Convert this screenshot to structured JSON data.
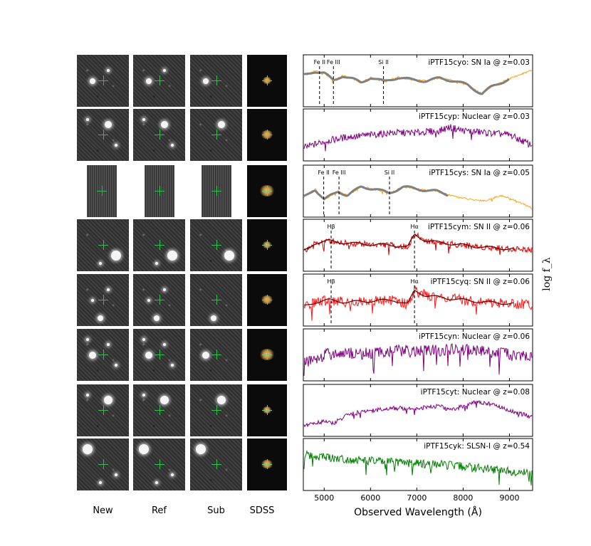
{
  "column_labels": [
    "New",
    "Ref",
    "Sub",
    "SDSS"
  ],
  "chart_data": {
    "type": "line",
    "xlabel": "Observed Wavelength (Å)",
    "ylabel": "log f_λ",
    "xlim": [
      4550,
      9500
    ],
    "xticks": [
      5000,
      6000,
      7000,
      8000,
      9000
    ],
    "panels": [
      {
        "label": "iPTF15cyo: SN Ia @ z=0.03",
        "color": "#f5a623",
        "template_color": "#808080",
        "lines": [
          {
            "name": "Fe II",
            "x": 4900
          },
          {
            "name": "Fe III",
            "x": 5200
          },
          {
            "name": "Si II",
            "x": 6280
          }
        ],
        "points": [
          [
            4550,
            0.62
          ],
          [
            4800,
            0.72
          ],
          [
            5000,
            0.68
          ],
          [
            5200,
            0.5
          ],
          [
            5400,
            0.62
          ],
          [
            5600,
            0.55
          ],
          [
            5800,
            0.45
          ],
          [
            6000,
            0.58
          ],
          [
            6300,
            0.48
          ],
          [
            6600,
            0.58
          ],
          [
            6900,
            0.52
          ],
          [
            7200,
            0.5
          ],
          [
            7500,
            0.56
          ],
          [
            7800,
            0.5
          ],
          [
            8100,
            0.4
          ],
          [
            8400,
            0.2
          ],
          [
            8600,
            0.35
          ],
          [
            9000,
            0.55
          ],
          [
            9500,
            0.75
          ]
        ]
      },
      {
        "label": "iPTF15cyp: Nuclear @ z=0.03",
        "color": "#800080",
        "lines": [],
        "points": [
          [
            4550,
            0.2
          ],
          [
            5000,
            0.35
          ],
          [
            5500,
            0.45
          ],
          [
            6000,
            0.5
          ],
          [
            6500,
            0.55
          ],
          [
            7000,
            0.55
          ],
          [
            7500,
            0.6
          ],
          [
            7700,
            0.68
          ],
          [
            8000,
            0.6
          ],
          [
            8500,
            0.55
          ],
          [
            9000,
            0.5
          ],
          [
            9500,
            0.25
          ]
        ]
      },
      {
        "label": "iPTF15cys: SN Ia @ z=0.05",
        "color": "#f5a623",
        "template_color": "#808080",
        "lines": [
          {
            "name": "Fe II",
            "x": 4990
          },
          {
            "name": "Fe III",
            "x": 5320
          },
          {
            "name": "Si II",
            "x": 6410
          }
        ],
        "points": [
          [
            4550,
            0.35
          ],
          [
            4800,
            0.55
          ],
          [
            5000,
            0.3
          ],
          [
            5300,
            0.5
          ],
          [
            5500,
            0.4
          ],
          [
            5800,
            0.6
          ],
          [
            6100,
            0.55
          ],
          [
            6400,
            0.45
          ],
          [
            6700,
            0.6
          ],
          [
            7000,
            0.55
          ],
          [
            7400,
            0.5
          ],
          [
            7800,
            0.38
          ],
          [
            8200,
            0.3
          ],
          [
            8500,
            0.28
          ],
          [
            8800,
            0.4
          ],
          [
            9100,
            0.3
          ],
          [
            9500,
            0.1
          ]
        ]
      },
      {
        "label": "iPTF15cym: SN II @ z=0.06",
        "color": "#e00000",
        "template_color": "#5a0000",
        "lines": [
          {
            "name": "Hβ",
            "x": 5150
          },
          {
            "name": "Hα",
            "x": 6950
          }
        ],
        "points": [
          [
            4550,
            0.35
          ],
          [
            4800,
            0.55
          ],
          [
            5100,
            0.6
          ],
          [
            5500,
            0.55
          ],
          [
            6000,
            0.52
          ],
          [
            6500,
            0.5
          ],
          [
            6800,
            0.45
          ],
          [
            6950,
            0.75
          ],
          [
            7200,
            0.6
          ],
          [
            7600,
            0.55
          ],
          [
            8000,
            0.5
          ],
          [
            8500,
            0.45
          ],
          [
            9000,
            0.42
          ],
          [
            9500,
            0.4
          ]
        ]
      },
      {
        "label": "iPTF15cyq: SN II @ z=0.06",
        "color": "#ff1a1a",
        "template_color": "#5a0000",
        "lines": [
          {
            "name": "Hβ",
            "x": 5150
          },
          {
            "name": "Hα",
            "x": 6950
          }
        ],
        "points": [
          [
            4550,
            0.35
          ],
          [
            4800,
            0.45
          ],
          [
            5100,
            0.5
          ],
          [
            5500,
            0.45
          ],
          [
            6000,
            0.48
          ],
          [
            6500,
            0.5
          ],
          [
            6800,
            0.4
          ],
          [
            6950,
            0.72
          ],
          [
            7200,
            0.6
          ],
          [
            7600,
            0.55
          ],
          [
            8000,
            0.5
          ],
          [
            8500,
            0.45
          ],
          [
            9000,
            0.42
          ],
          [
            9500,
            0.4
          ]
        ]
      },
      {
        "label": "iPTF15cyn: Nuclear @ z=0.06",
        "color": "#800080",
        "lines": [],
        "points": [
          [
            4550,
            0.3
          ],
          [
            5000,
            0.5
          ],
          [
            5500,
            0.55
          ],
          [
            6000,
            0.52
          ],
          [
            6500,
            0.6
          ],
          [
            7000,
            0.58
          ],
          [
            7500,
            0.6
          ],
          [
            8000,
            0.62
          ],
          [
            8500,
            0.58
          ],
          [
            9000,
            0.5
          ],
          [
            9500,
            0.45
          ]
        ]
      },
      {
        "label": "iPTF15cyt: Nuclear @ z=0.08",
        "color": "#800080",
        "lines": [],
        "points": [
          [
            4550,
            0.15
          ],
          [
            5000,
            0.25
          ],
          [
            5200,
            0.2
          ],
          [
            5500,
            0.4
          ],
          [
            6000,
            0.5
          ],
          [
            6500,
            0.55
          ],
          [
            7000,
            0.55
          ],
          [
            7500,
            0.6
          ],
          [
            7700,
            0.5
          ],
          [
            8000,
            0.6
          ],
          [
            8300,
            0.7
          ],
          [
            8600,
            0.65
          ],
          [
            9000,
            0.5
          ],
          [
            9500,
            0.35
          ]
        ]
      },
      {
        "label": "iPTF15cyk: SLSN-I @ z=0.54",
        "color": "#008000",
        "lines": [],
        "points": [
          [
            4550,
            0.72
          ],
          [
            5000,
            0.68
          ],
          [
            5500,
            0.62
          ],
          [
            6000,
            0.58
          ],
          [
            6500,
            0.55
          ],
          [
            7000,
            0.52
          ],
          [
            7500,
            0.5
          ],
          [
            8000,
            0.45
          ],
          [
            8500,
            0.4
          ],
          [
            9000,
            0.35
          ],
          [
            9500,
            0.3
          ]
        ]
      }
    ]
  }
}
